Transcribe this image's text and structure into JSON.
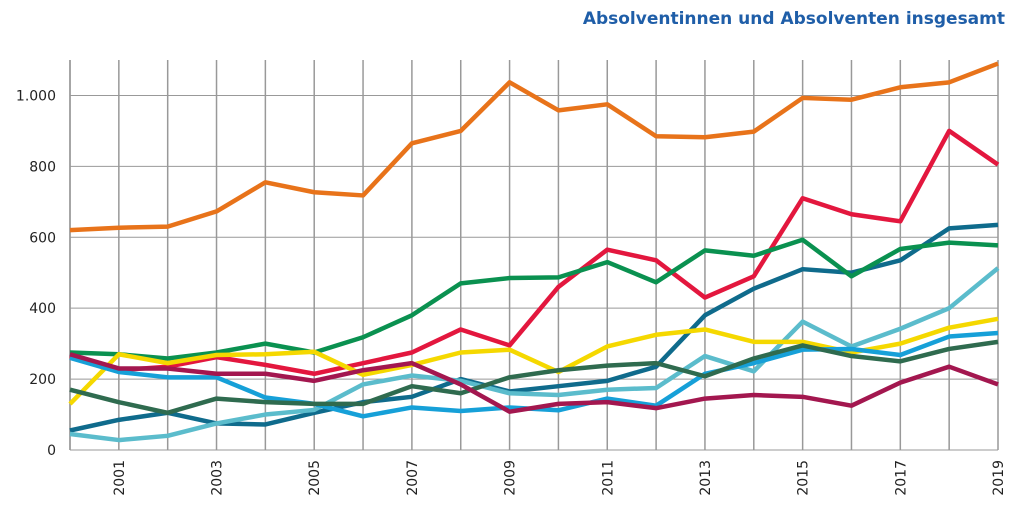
{
  "chart_data": {
    "type": "line",
    "title": "Absolventinnen und Absolventen insgesamt",
    "categories": [
      null,
      "2001",
      null,
      "2003",
      null,
      "2005",
      null,
      "2007",
      null,
      "2009",
      null,
      "2011",
      null,
      "2013",
      null,
      "2015",
      null,
      "2017",
      null,
      "2019"
    ],
    "series": [
      {
        "color": "#e8731a",
        "values": [
          620,
          627,
          630,
          673,
          755,
          727,
          718,
          865,
          900,
          1037,
          958,
          975,
          885,
          882,
          898,
          993,
          988,
          1023,
          1037,
          1090
        ]
      },
      {
        "color": "#e3173e",
        "values": [
          265,
          225,
          235,
          262,
          240,
          215,
          245,
          275,
          340,
          295,
          460,
          565,
          535,
          430,
          490,
          710,
          665,
          645,
          900,
          805
        ]
      },
      {
        "color": "#0f6b8c",
        "values": [
          55,
          85,
          105,
          75,
          72,
          105,
          135,
          150,
          200,
          165,
          180,
          195,
          235,
          380,
          455,
          510,
          500,
          535,
          625,
          635
        ]
      },
      {
        "color": "#0a9150",
        "values": [
          275,
          270,
          258,
          275,
          300,
          275,
          318,
          380,
          470,
          485,
          487,
          530,
          473,
          563,
          548,
          593,
          490,
          567,
          585,
          577
        ]
      },
      {
        "color": "#5bbccc",
        "values": [
          45,
          28,
          40,
          75,
          100,
          113,
          185,
          210,
          195,
          160,
          155,
          170,
          175,
          265,
          222,
          362,
          292,
          342,
          400,
          513
        ]
      },
      {
        "color": "#f5d800",
        "values": [
          130,
          270,
          245,
          268,
          270,
          277,
          212,
          240,
          275,
          283,
          220,
          292,
          325,
          340,
          305,
          305,
          275,
          300,
          345,
          370
        ]
      },
      {
        "color": "#16a0d8",
        "values": [
          260,
          220,
          205,
          205,
          148,
          130,
          95,
          120,
          110,
          120,
          112,
          145,
          125,
          215,
          245,
          283,
          285,
          268,
          320,
          330
        ]
      },
      {
        "color": "#2f6b4f",
        "values": [
          170,
          135,
          105,
          145,
          135,
          130,
          130,
          180,
          160,
          205,
          225,
          238,
          245,
          208,
          258,
          295,
          265,
          250,
          285,
          305
        ]
      },
      {
        "color": "#a3174f",
        "values": [
          270,
          230,
          230,
          215,
          215,
          195,
          225,
          245,
          185,
          108,
          130,
          135,
          118,
          145,
          155,
          150,
          125,
          190,
          235,
          185
        ]
      }
    ],
    "ylim": [
      0,
      1100
    ],
    "yticks": [
      0,
      200,
      400,
      600,
      800,
      {
        "value": 1000,
        "label": "1.000"
      }
    ],
    "grid": true
  }
}
